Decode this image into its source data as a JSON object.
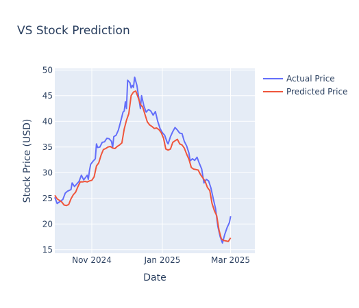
{
  "chart_data": {
    "type": "line",
    "title": "VS Stock Prediction",
    "xlabel": "Date",
    "ylabel": "Stock Price (USD)",
    "xlim": [
      "2024-09-30",
      "2025-03-22"
    ],
    "ylim": [
      14.3,
      50.3
    ],
    "x_ticks": [
      {
        "date": "2024-11-01",
        "label": "Nov 2024"
      },
      {
        "date": "2025-01-01",
        "label": "Jan 2025"
      },
      {
        "date": "2025-03-01",
        "label": "Mar 2025"
      }
    ],
    "y_ticks": [
      15,
      20,
      25,
      30,
      35,
      40,
      45,
      50
    ],
    "grid": true,
    "legend_position": "right",
    "series": [
      {
        "name": "Actual Price",
        "color": "#636efa",
        "points": [
          [
            "2024-09-30",
            25.2
          ],
          [
            "2024-10-02",
            24.0
          ],
          [
            "2024-10-04",
            24.3
          ],
          [
            "2024-10-07",
            24.8
          ],
          [
            "2024-10-09",
            26.0
          ],
          [
            "2024-10-11",
            26.4
          ],
          [
            "2024-10-14",
            26.7
          ],
          [
            "2024-10-15",
            28.0
          ],
          [
            "2024-10-17",
            27.3
          ],
          [
            "2024-10-19",
            27.8
          ],
          [
            "2024-10-21",
            28.3
          ],
          [
            "2024-10-23",
            29.5
          ],
          [
            "2024-10-25",
            28.6
          ],
          [
            "2024-10-27",
            29.2
          ],
          [
            "2024-10-28",
            29.5
          ],
          [
            "2024-10-29",
            28.7
          ],
          [
            "2024-10-30",
            30.4
          ],
          [
            "2024-10-31",
            31.6
          ],
          [
            "2024-11-02",
            32.2
          ],
          [
            "2024-11-04",
            32.7
          ],
          [
            "2024-11-05",
            35.6
          ],
          [
            "2024-11-06",
            34.9
          ],
          [
            "2024-11-08",
            35.0
          ],
          [
            "2024-11-10",
            35.9
          ],
          [
            "2024-11-12",
            36.0
          ],
          [
            "2024-11-14",
            36.7
          ],
          [
            "2024-11-16",
            36.6
          ],
          [
            "2024-11-18",
            36.1
          ],
          [
            "2024-11-19",
            34.9
          ],
          [
            "2024-11-20",
            37.0
          ],
          [
            "2024-11-22",
            37.3
          ],
          [
            "2024-11-24",
            38.3
          ],
          [
            "2024-11-26",
            40.0
          ],
          [
            "2024-11-28",
            41.8
          ],
          [
            "2024-11-29",
            42.0
          ],
          [
            "2024-11-30",
            43.8
          ],
          [
            "2024-12-01",
            42.5
          ],
          [
            "2024-12-02",
            48.0
          ],
          [
            "2024-12-04",
            47.5
          ],
          [
            "2024-12-05",
            46.5
          ],
          [
            "2024-12-06",
            47.0
          ],
          [
            "2024-12-07",
            46.6
          ],
          [
            "2024-12-08",
            48.6
          ],
          [
            "2024-12-10",
            47.0
          ],
          [
            "2024-12-11",
            45.5
          ],
          [
            "2024-12-13",
            42.5
          ],
          [
            "2024-12-14",
            45.0
          ],
          [
            "2024-12-16",
            43.0
          ],
          [
            "2024-12-18",
            41.8
          ],
          [
            "2024-12-20",
            42.3
          ],
          [
            "2024-12-22",
            42.0
          ],
          [
            "2024-12-24",
            41.2
          ],
          [
            "2024-12-26",
            41.9
          ],
          [
            "2024-12-28",
            40.0
          ],
          [
            "2024-12-30",
            38.6
          ],
          [
            "2025-01-01",
            37.8
          ],
          [
            "2025-01-03",
            37.3
          ],
          [
            "2025-01-05",
            36.0
          ],
          [
            "2025-01-06",
            35.6
          ],
          [
            "2025-01-08",
            37.0
          ],
          [
            "2025-01-10",
            38.0
          ],
          [
            "2025-01-12",
            38.8
          ],
          [
            "2025-01-14",
            38.3
          ],
          [
            "2025-01-16",
            37.7
          ],
          [
            "2025-01-18",
            37.6
          ],
          [
            "2025-01-20",
            36.1
          ],
          [
            "2025-01-22",
            35.2
          ],
          [
            "2025-01-24",
            33.8
          ],
          [
            "2025-01-25",
            32.3
          ],
          [
            "2025-01-27",
            32.7
          ],
          [
            "2025-01-29",
            32.4
          ],
          [
            "2025-01-31",
            33.0
          ],
          [
            "2025-02-02",
            31.8
          ],
          [
            "2025-02-04",
            30.7
          ],
          [
            "2025-02-06",
            28.0
          ],
          [
            "2025-02-08",
            28.7
          ],
          [
            "2025-02-10",
            28.4
          ],
          [
            "2025-02-12",
            27.0
          ],
          [
            "2025-02-14",
            25.0
          ],
          [
            "2025-02-16",
            23.0
          ],
          [
            "2025-02-18",
            19.5
          ],
          [
            "2025-02-20",
            17.5
          ],
          [
            "2025-02-22",
            16.3
          ],
          [
            "2025-02-24",
            18.0
          ],
          [
            "2025-02-26",
            19.3
          ],
          [
            "2025-02-28",
            20.3
          ],
          [
            "2025-03-01",
            21.5
          ]
        ]
      },
      {
        "name": "Predicted Price",
        "color": "#ef553b",
        "points": [
          [
            "2024-09-30",
            25.6
          ],
          [
            "2024-10-02",
            24.9
          ],
          [
            "2024-10-04",
            24.6
          ],
          [
            "2024-10-06",
            24.3
          ],
          [
            "2024-10-08",
            23.7
          ],
          [
            "2024-10-10",
            23.6
          ],
          [
            "2024-10-12",
            23.8
          ],
          [
            "2024-10-14",
            24.9
          ],
          [
            "2024-10-16",
            25.7
          ],
          [
            "2024-10-18",
            26.2
          ],
          [
            "2024-10-20",
            27.3
          ],
          [
            "2024-10-22",
            28.2
          ],
          [
            "2024-10-24",
            28.2
          ],
          [
            "2024-10-26",
            28.3
          ],
          [
            "2024-10-28",
            28.2
          ],
          [
            "2024-10-30",
            28.4
          ],
          [
            "2024-11-01",
            28.5
          ],
          [
            "2024-11-03",
            29.2
          ],
          [
            "2024-11-05",
            31.3
          ],
          [
            "2024-11-07",
            31.9
          ],
          [
            "2024-11-09",
            33.4
          ],
          [
            "2024-11-11",
            34.5
          ],
          [
            "2024-11-13",
            34.7
          ],
          [
            "2024-11-15",
            35.0
          ],
          [
            "2024-11-17",
            35.1
          ],
          [
            "2024-11-19",
            34.8
          ],
          [
            "2024-11-21",
            34.7
          ],
          [
            "2024-11-23",
            35.1
          ],
          [
            "2024-11-25",
            35.4
          ],
          [
            "2024-11-27",
            35.8
          ],
          [
            "2024-11-29",
            38.5
          ],
          [
            "2024-12-01",
            40.2
          ],
          [
            "2024-12-03",
            41.5
          ],
          [
            "2024-12-05",
            45.0
          ],
          [
            "2024-12-07",
            45.7
          ],
          [
            "2024-12-09",
            45.9
          ],
          [
            "2024-12-11",
            44.7
          ],
          [
            "2024-12-13",
            43.3
          ],
          [
            "2024-12-15",
            42.8
          ],
          [
            "2024-12-17",
            41.3
          ],
          [
            "2024-12-19",
            39.9
          ],
          [
            "2024-12-21",
            39.3
          ],
          [
            "2024-12-23",
            39.0
          ],
          [
            "2024-12-25",
            38.6
          ],
          [
            "2024-12-27",
            38.7
          ],
          [
            "2024-12-29",
            38.4
          ],
          [
            "2024-12-31",
            37.8
          ],
          [
            "2025-01-02",
            36.7
          ],
          [
            "2025-01-04",
            34.6
          ],
          [
            "2025-01-06",
            34.4
          ],
          [
            "2025-01-08",
            34.6
          ],
          [
            "2025-01-10",
            35.9
          ],
          [
            "2025-01-12",
            36.2
          ],
          [
            "2025-01-14",
            36.5
          ],
          [
            "2025-01-16",
            35.6
          ],
          [
            "2025-01-18",
            35.4
          ],
          [
            "2025-01-20",
            34.8
          ],
          [
            "2025-01-22",
            33.6
          ],
          [
            "2025-01-24",
            32.6
          ],
          [
            "2025-01-26",
            31.0
          ],
          [
            "2025-01-28",
            30.7
          ],
          [
            "2025-01-30",
            30.6
          ],
          [
            "2025-02-01",
            30.5
          ],
          [
            "2025-02-03",
            29.6
          ],
          [
            "2025-02-05",
            29.0
          ],
          [
            "2025-02-07",
            28.3
          ],
          [
            "2025-02-09",
            27.1
          ],
          [
            "2025-02-11",
            26.5
          ],
          [
            "2025-02-13",
            24.0
          ],
          [
            "2025-02-15",
            22.6
          ],
          [
            "2025-02-17",
            21.6
          ],
          [
            "2025-02-19",
            18.8
          ],
          [
            "2025-02-21",
            17.1
          ],
          [
            "2025-02-23",
            16.8
          ],
          [
            "2025-02-25",
            16.7
          ],
          [
            "2025-02-27",
            16.6
          ],
          [
            "2025-03-01",
            17.3
          ]
        ]
      }
    ]
  }
}
